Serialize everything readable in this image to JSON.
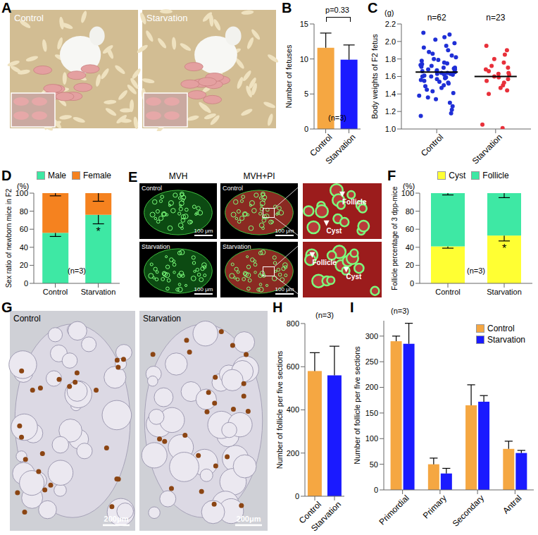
{
  "chart_data": [
    {
      "panel": "B",
      "type": "bar",
      "categories": [
        "Control",
        "Starvation"
      ],
      "values": [
        11.6,
        9.9
      ],
      "errors": [
        2.1,
        2.1
      ],
      "colors": [
        "#f5a742",
        "#1a1aff"
      ],
      "ylim": [
        0,
        15
      ],
      "yticks": [
        0,
        5,
        10,
        15
      ],
      "y_label": "Number of fetuses",
      "annotations": {
        "p_value": "p=0.33",
        "n": "(n=3)"
      }
    },
    {
      "panel": "C",
      "type": "scatter",
      "categories": [
        "Control",
        "Starvation"
      ],
      "values": [
        [
          2.1,
          2.08,
          2.05,
          2.02,
          1.98,
          1.95,
          1.93,
          1.9,
          1.88,
          1.86,
          1.84,
          1.82,
          1.8,
          1.79,
          1.78,
          1.76,
          1.75,
          1.74,
          1.73,
          1.72,
          1.71,
          1.7,
          1.7,
          1.69,
          1.68,
          1.68,
          1.67,
          1.66,
          1.66,
          1.65,
          1.65,
          1.64,
          1.64,
          1.63,
          1.63,
          1.62,
          1.62,
          1.61,
          1.6,
          1.6,
          1.59,
          1.58,
          1.57,
          1.56,
          1.55,
          1.54,
          1.53,
          1.52,
          1.5,
          1.49,
          1.47,
          1.45,
          1.43,
          1.41,
          1.38,
          1.36,
          1.34,
          1.3,
          1.26,
          1.22,
          1.18,
          1.15
        ],
        [
          1.95,
          1.9,
          1.85,
          1.8,
          1.76,
          1.72,
          1.7,
          1.68,
          1.66,
          1.64,
          1.63,
          1.62,
          1.6,
          1.59,
          1.57,
          1.55,
          1.53,
          1.5,
          1.47,
          1.44,
          1.4,
          1.05,
          1.01
        ]
      ],
      "means": [
        1.65,
        1.6
      ],
      "n_labels": [
        "n=62",
        "n=23"
      ],
      "colors": [
        "#1f2fd6",
        "#e8303a"
      ],
      "ylim": [
        1.0,
        2.2
      ],
      "yticks": [
        {
          "value": 1,
          "label": "1.0"
        },
        1.2,
        1.4,
        1.6,
        1.8,
        {
          "value": 2,
          "label": "2.0"
        },
        2.2
      ],
      "y_label": "Body weights of F2 fetus",
      "y_unit": "(g)"
    },
    {
      "panel": "D",
      "type": "bar",
      "stacked": true,
      "categories": [
        "Control",
        "Starvation"
      ],
      "series": [
        {
          "name": "Male",
          "color": "#3ee8a4",
          "values": [
            56,
            76
          ],
          "errors": [
            4,
            10
          ],
          "significance": [
            null,
            "*"
          ]
        },
        {
          "name": "Female",
          "color": "#f5821f",
          "values": [
            44,
            24
          ],
          "errors": [
            3,
            9
          ]
        }
      ],
      "ylim": [
        0,
        100
      ],
      "yticks": [
        0,
        20,
        40,
        60,
        80,
        100
      ],
      "y_label": "Sex ratio of newborn mice in F2",
      "y_unit": "(%)",
      "legend": "top",
      "annotations": {
        "n": "(n=3)"
      }
    },
    {
      "panel": "F",
      "type": "bar",
      "stacked": true,
      "categories": [
        "Control",
        "Starvation"
      ],
      "series": [
        {
          "name": "Cyst",
          "color": "#ffff33",
          "values": [
            41,
            53
          ],
          "errors": [
            2,
            6
          ],
          "significance": [
            null,
            "*"
          ]
        },
        {
          "name": "Follicle",
          "color": "#3ee8a4",
          "values": [
            59,
            47
          ],
          "errors": [
            2,
            5
          ]
        }
      ],
      "ylim": [
        0,
        100
      ],
      "yticks": [
        0,
        20,
        40,
        60,
        80,
        100
      ],
      "y_label": "Follicle percentage of 3 dpp-mice",
      "y_unit": "(%)",
      "legend": "top",
      "annotations": {
        "n": "(n=3)"
      }
    },
    {
      "panel": "H",
      "type": "bar",
      "categories": [
        "Control",
        "Starvation"
      ],
      "values": [
        580,
        560
      ],
      "errors": [
        85,
        135
      ],
      "colors": [
        "#f5a742",
        "#1a1aff"
      ],
      "ylim": [
        0,
        800
      ],
      "yticks": [
        0,
        200,
        400,
        600,
        800
      ],
      "y_label": "Number of follicle per five sections",
      "annotations": {
        "n": "(n=3)"
      }
    },
    {
      "panel": "I",
      "type": "bar",
      "categories": [
        "Primordial",
        "Primary",
        "Secondary",
        "Antral"
      ],
      "series": [
        {
          "name": "Control",
          "color": "#f5a742",
          "values": [
            290,
            50,
            165,
            80
          ],
          "errors": [
            10,
            12,
            40,
            15
          ]
        },
        {
          "name": "Starvation",
          "color": "#1a1aff",
          "values": [
            285,
            32,
            172,
            72
          ],
          "errors": [
            40,
            10,
            12,
            5
          ]
        }
      ],
      "ylim": [
        0,
        330
      ],
      "yticks": [
        0,
        50,
        100,
        150,
        200,
        250,
        300
      ],
      "y_label": "Number of follicle per five sections",
      "legend": "top-right",
      "annotations": {
        "n": "(n=3)"
      }
    }
  ],
  "images": [
    {
      "panel": "A",
      "photos": [
        "Control",
        "Starvation"
      ]
    },
    {
      "panel": "E",
      "columns": [
        "MVH",
        "MVH+PI"
      ],
      "rows": [
        "Control",
        "Starvation"
      ],
      "scale_bar": "100 μm",
      "callouts": [
        "Follicle",
        "Cyst"
      ]
    },
    {
      "panel": "G",
      "photos": [
        "Control",
        "Starvation"
      ],
      "scale_bar": "200μm"
    }
  ]
}
